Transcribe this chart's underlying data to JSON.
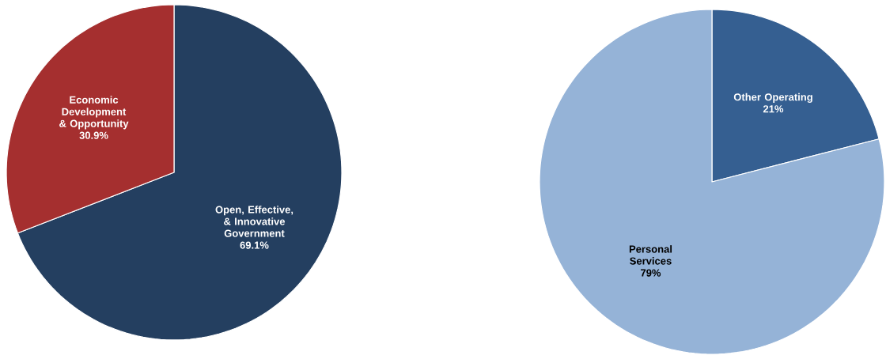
{
  "chart_data": [
    {
      "type": "pie",
      "categories": [
        "Open, Effective, & Innovative Government",
        "Economic Development & Opportunity"
      ],
      "values": [
        69.1,
        30.9
      ],
      "colors": [
        "#243f60",
        "#a52f2f"
      ],
      "value_labels": [
        "69.1%",
        "30.9%"
      ]
    },
    {
      "type": "pie",
      "categories": [
        "Other Operating",
        "Personal Services"
      ],
      "values": [
        21,
        79
      ],
      "colors": [
        "#355f91",
        "#95b3d7"
      ],
      "value_labels": [
        "21%",
        "79%"
      ]
    }
  ]
}
